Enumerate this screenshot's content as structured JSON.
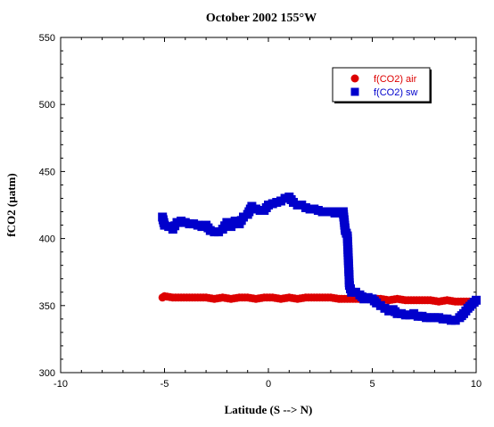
{
  "chart_data": {
    "type": "scatter",
    "title": "October 2002 155°W",
    "xlabel": "Latitude (S --> N)",
    "ylabel": "fCO2 (µatm)",
    "xlim": [
      -10,
      10
    ],
    "ylim": [
      300,
      550
    ],
    "x_ticks": [
      "-10",
      "-5",
      "0",
      "5",
      "10"
    ],
    "y_ticks": [
      "300",
      "350",
      "400",
      "450",
      "500",
      "550"
    ],
    "grid": false,
    "legend_position": "top-right",
    "series": [
      {
        "name": "f(CO2) air",
        "marker": "circle",
        "color": "#dd0000",
        "x": [
          -5.1,
          -5.0,
          -4.6,
          -4.2,
          -3.8,
          -3.4,
          -3.0,
          -2.6,
          -2.2,
          -1.8,
          -1.4,
          -1.0,
          -0.6,
          -0.2,
          0.2,
          0.6,
          1.0,
          1.4,
          1.8,
          2.2,
          2.6,
          3.0,
          3.4,
          3.8,
          4.2,
          4.6,
          5.0,
          5.4,
          5.8,
          6.2,
          6.6,
          7.0,
          7.4,
          7.8,
          8.2,
          8.6,
          9.0,
          9.4,
          9.8,
          10.0
        ],
        "y": [
          356,
          357,
          356,
          356,
          356,
          356,
          356,
          355,
          356,
          355,
          356,
          356,
          355,
          356,
          356,
          355,
          356,
          355,
          356,
          356,
          356,
          356,
          355,
          355,
          355,
          355,
          355,
          355,
          354,
          355,
          354,
          354,
          354,
          354,
          353,
          354,
          353,
          353,
          353,
          353
        ]
      },
      {
        "name": "f(CO2) sw",
        "marker": "square",
        "color": "#0000cc",
        "x": [
          -5.1,
          -5.0,
          -4.8,
          -4.6,
          -4.4,
          -4.2,
          -4.0,
          -3.8,
          -3.6,
          -3.4,
          -3.2,
          -3.0,
          -2.8,
          -2.6,
          -2.4,
          -2.2,
          -2.0,
          -1.8,
          -1.6,
          -1.4,
          -1.2,
          -1.0,
          -0.8,
          -0.6,
          -0.4,
          -0.2,
          0.0,
          0.2,
          0.4,
          0.6,
          0.8,
          1.0,
          1.2,
          1.4,
          1.6,
          1.8,
          2.0,
          2.2,
          2.4,
          2.6,
          2.8,
          3.0,
          3.2,
          3.4,
          3.6,
          3.7,
          3.8,
          3.9,
          4.0,
          4.2,
          4.4,
          4.6,
          4.8,
          5.0,
          5.2,
          5.4,
          5.6,
          5.8,
          6.0,
          6.2,
          6.4,
          6.6,
          6.8,
          7.0,
          7.2,
          7.4,
          7.6,
          7.8,
          8.0,
          8.2,
          8.4,
          8.6,
          8.8,
          9.0,
          9.2,
          9.4,
          9.6,
          9.8,
          10.0
        ],
        "y": [
          416,
          410,
          409,
          407,
          412,
          413,
          412,
          411,
          411,
          410,
          409,
          410,
          406,
          405,
          405,
          407,
          412,
          409,
          413,
          411,
          416,
          418,
          424,
          422,
          421,
          421,
          425,
          426,
          427,
          428,
          430,
          431,
          427,
          425,
          425,
          423,
          422,
          422,
          421,
          420,
          420,
          420,
          419,
          420,
          420,
          406,
          402,
          365,
          360,
          360,
          358,
          355,
          356,
          355,
          352,
          350,
          348,
          346,
          347,
          344,
          344,
          343,
          343,
          344,
          342,
          342,
          341,
          341,
          341,
          341,
          340,
          340,
          339,
          339,
          341,
          344,
          348,
          351,
          354
        ]
      }
    ]
  }
}
